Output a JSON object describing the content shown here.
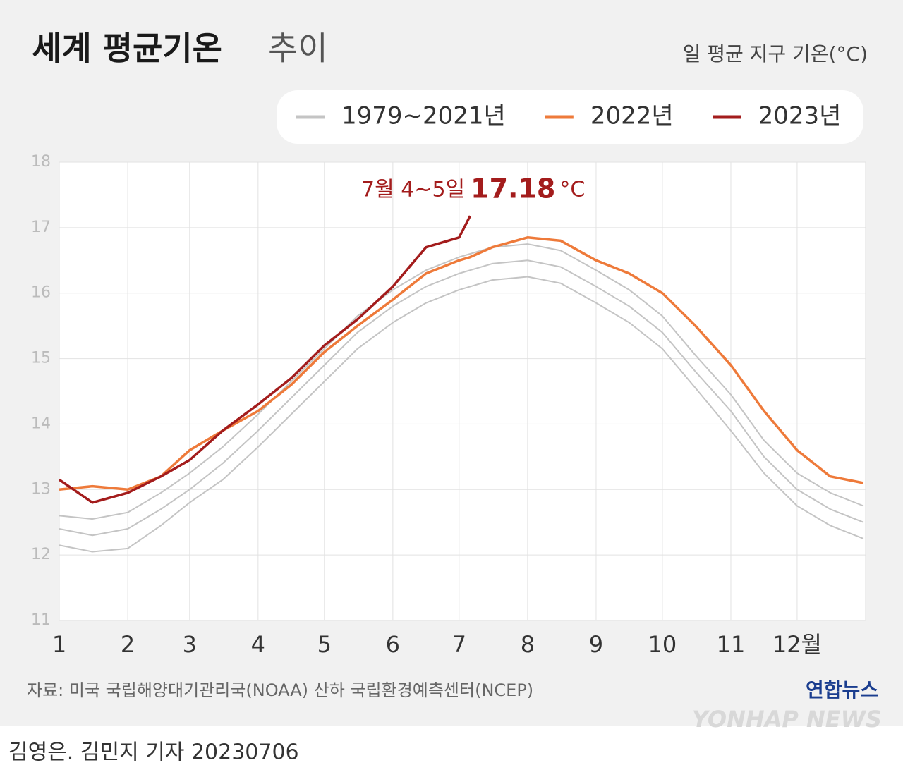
{
  "chart_data": {
    "type": "line",
    "title": "세계 평균기온",
    "title_suffix": "추이",
    "subtitle": "일 평균 지구 기온(°C)",
    "annotation": {
      "text": "7월 4~5일",
      "unit": "°C"
    },
    "source": "자료: 미국 국립해양대기관리국(NOAA) 산하 국립환경예측센터(NCEP)",
    "credit": "김영은. 김민지 기자  20230706",
    "logo": "연합뉴스",
    "logo_en": "YONHAP NEWS",
    "x": [
      0,
      15,
      31,
      46,
      59,
      74,
      90,
      105,
      120,
      135,
      151,
      166,
      181,
      186,
      196,
      212,
      227,
      243,
      258,
      273,
      288,
      304,
      319,
      334,
      349,
      364
    ],
    "xlim": [
      0,
      365
    ],
    "xticks": [
      {
        "value": 0,
        "label": "1"
      },
      {
        "value": 31,
        "label": "2"
      },
      {
        "value": 59,
        "label": "3"
      },
      {
        "value": 90,
        "label": "4"
      },
      {
        "value": 120,
        "label": "5"
      },
      {
        "value": 151,
        "label": "6"
      },
      {
        "value": 181,
        "label": "7"
      },
      {
        "value": 212,
        "label": "8"
      },
      {
        "value": 243,
        "label": "9"
      },
      {
        "value": 273,
        "label": "10"
      },
      {
        "value": 304,
        "label": "11"
      },
      {
        "value": 334,
        "label": "12월"
      }
    ],
    "ylim": [
      11,
      18
    ],
    "yticks": [
      11,
      12,
      13,
      14,
      15,
      16,
      17,
      18
    ],
    "grid": true,
    "series": [
      {
        "name": "1979~2021년",
        "color": "#c4c4c4",
        "values": [
          12.4,
          12.3,
          12.4,
          12.7,
          13.0,
          13.4,
          13.9,
          14.4,
          14.9,
          15.4,
          15.8,
          16.1,
          16.3,
          16.35,
          16.45,
          16.5,
          16.4,
          16.1,
          15.8,
          15.4,
          14.8,
          14.2,
          13.5,
          13.0,
          12.7,
          12.5
        ]
      },
      {
        "color": "#c4c4c4",
        "values": [
          12.15,
          12.05,
          12.1,
          12.45,
          12.8,
          13.15,
          13.65,
          14.15,
          14.65,
          15.15,
          15.55,
          15.85,
          16.05,
          16.1,
          16.2,
          16.25,
          16.15,
          15.85,
          15.55,
          15.15,
          14.55,
          13.9,
          13.25,
          12.75,
          12.45,
          12.25
        ]
      },
      {
        "color": "#c4c4c4",
        "values": [
          12.6,
          12.55,
          12.65,
          12.95,
          13.25,
          13.65,
          14.15,
          14.65,
          15.15,
          15.65,
          16.05,
          16.35,
          16.55,
          16.6,
          16.7,
          16.75,
          16.65,
          16.35,
          16.05,
          15.65,
          15.05,
          14.45,
          13.75,
          13.25,
          12.95,
          12.75
        ]
      },
      {
        "color": "#ee7a3a",
        "name": "2022년",
        "values": [
          13.0,
          13.05,
          13.0,
          13.2,
          13.6,
          13.9,
          14.2,
          14.6,
          15.1,
          15.5,
          15.9,
          16.3,
          16.5,
          16.55,
          16.7,
          16.85,
          16.8,
          16.5,
          16.3,
          16.0,
          15.5,
          14.9,
          14.2,
          13.6,
          13.2,
          13.1
        ]
      },
      {
        "color": "#a31c1c",
        "name": "2023년",
        "values": [
          13.15,
          12.8,
          12.95,
          13.2,
          13.45,
          13.9,
          14.3,
          14.7,
          15.2,
          15.6,
          16.1,
          16.7,
          16.85,
          17.18,
          null,
          null,
          null,
          null,
          null,
          null,
          null,
          null,
          null,
          null,
          null,
          null
        ]
      }
    ]
  }
}
